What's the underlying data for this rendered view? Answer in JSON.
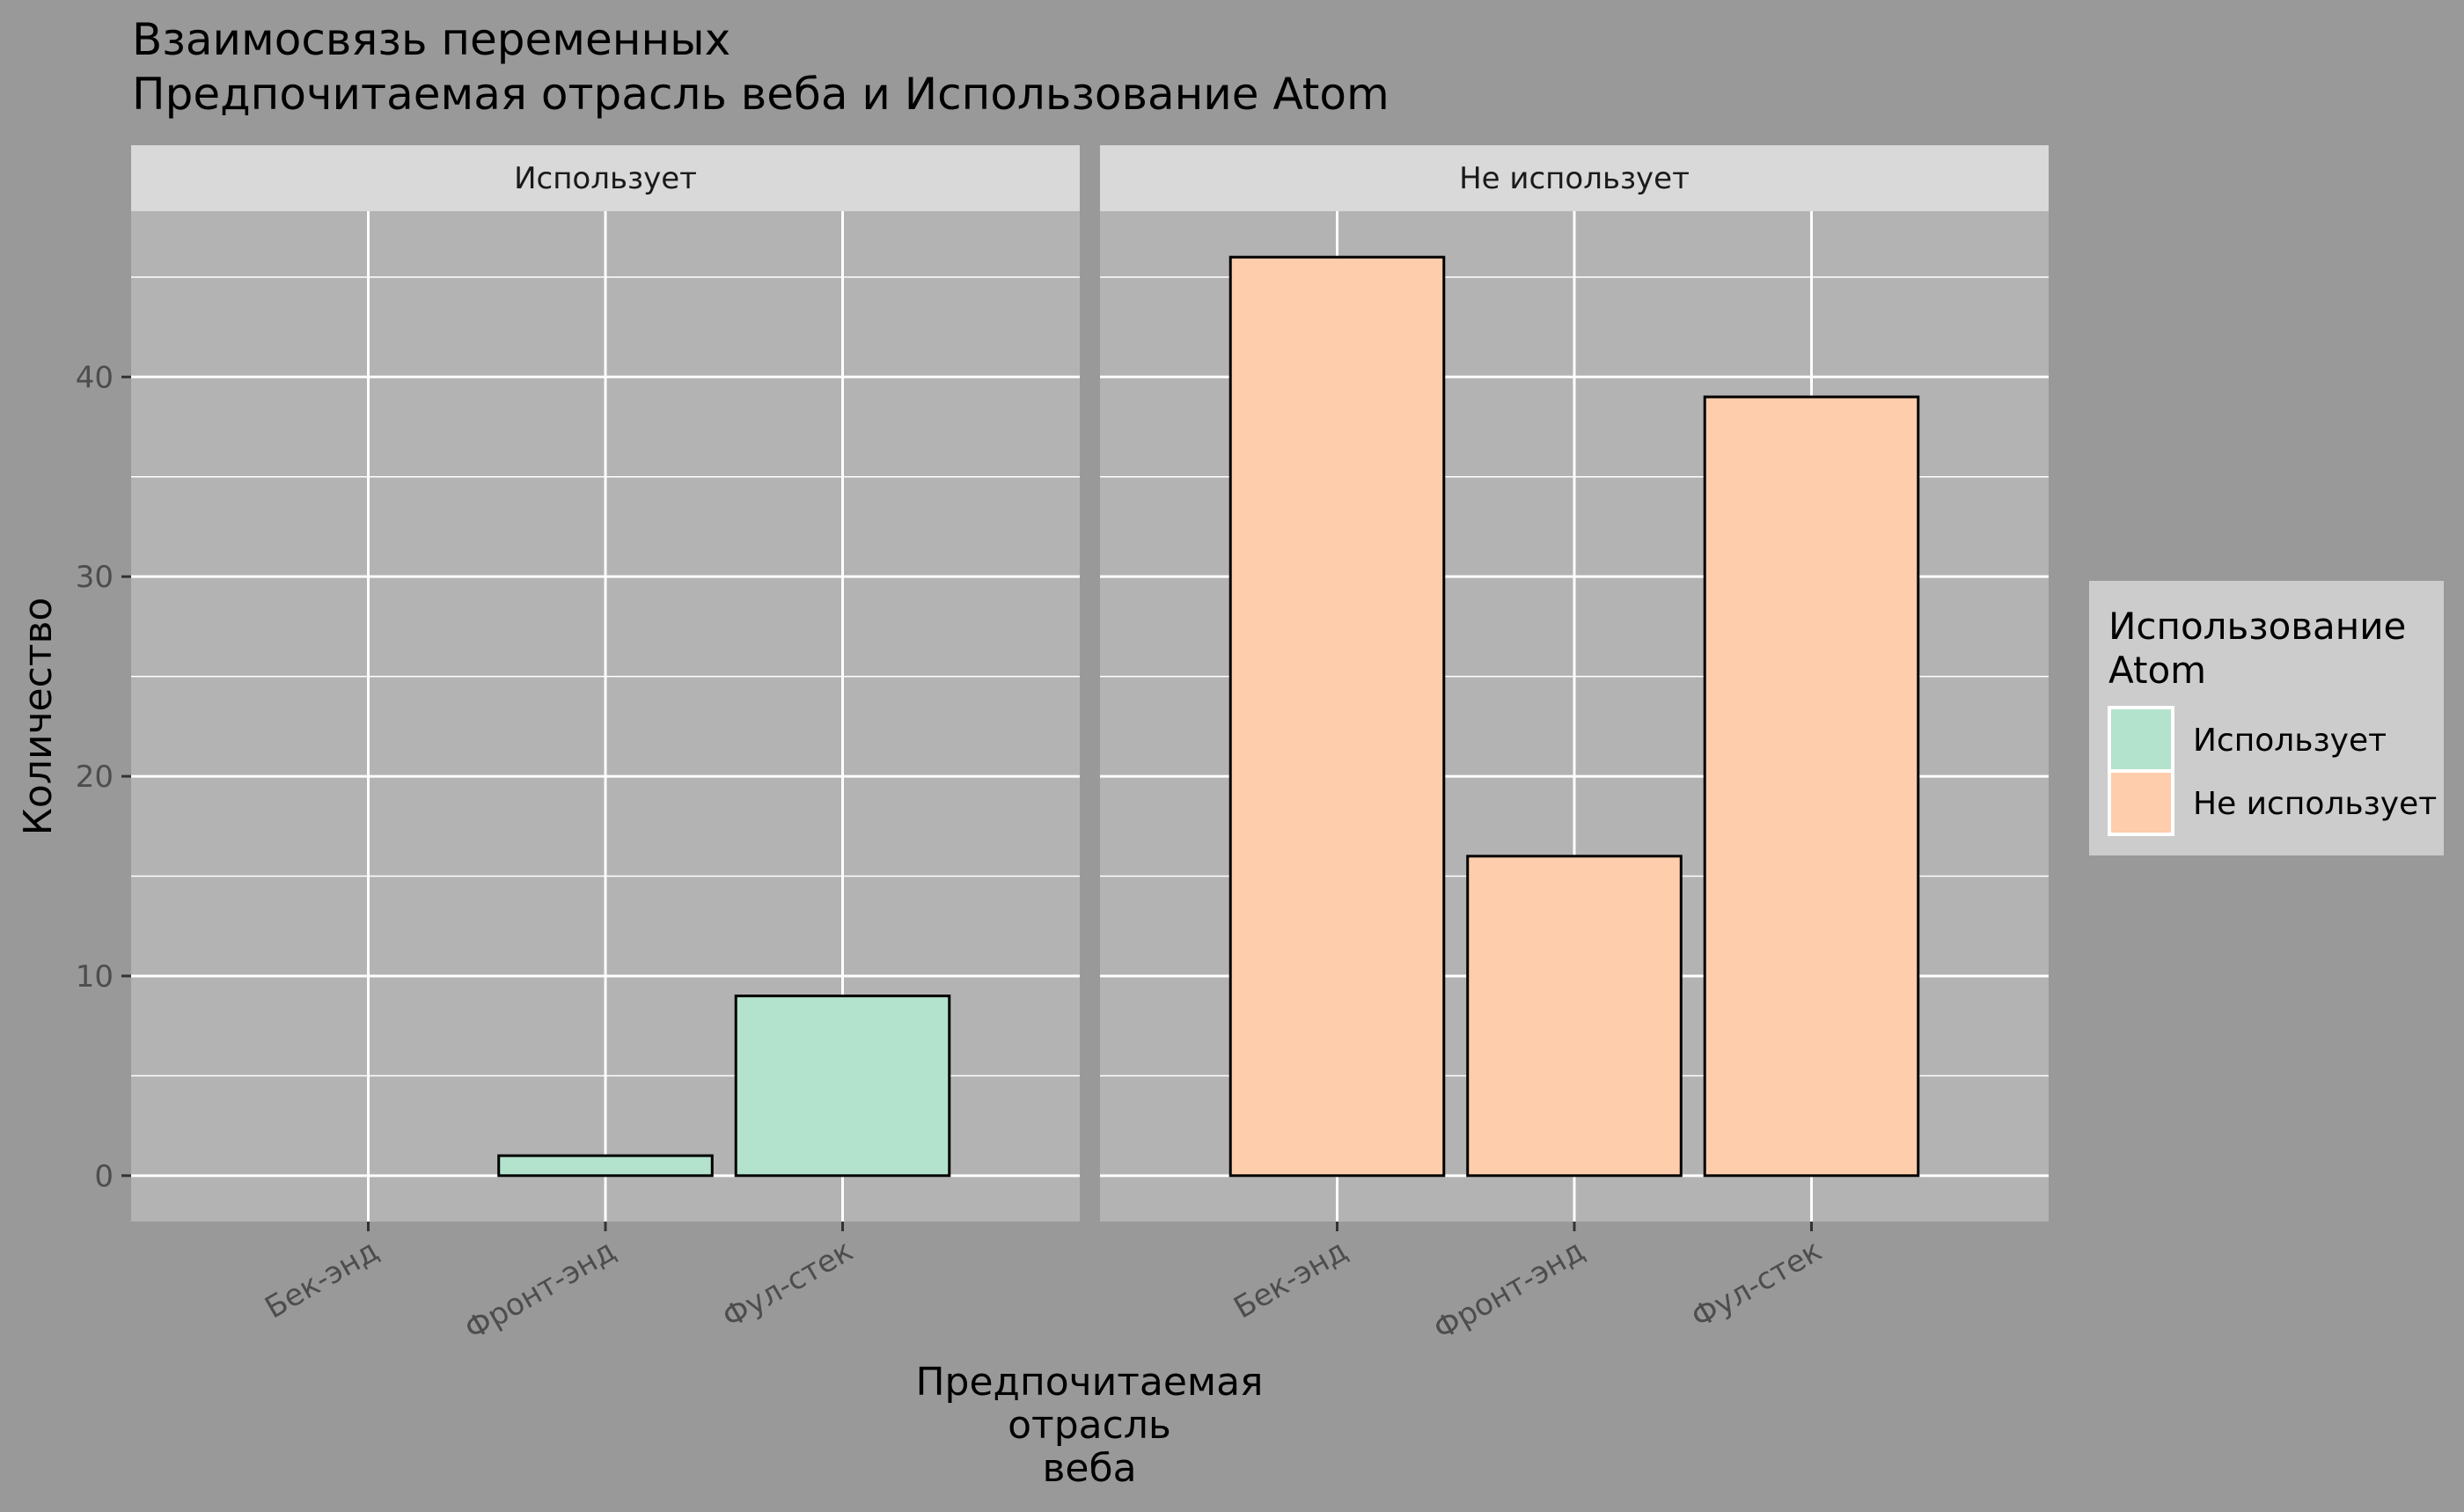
{
  "chart_data": {
    "type": "bar",
    "title": "Взаимосвязь переменных\n Предпочитаемая отрасль веба и Использование Atom",
    "xlabel": "Предпочитаемая\nотрасль\nвеба",
    "ylabel": "Количество",
    "categories": [
      "Бек-энд",
      "Фронт-энд",
      "Фул-стек"
    ],
    "facets": [
      "Использует",
      "Не использует"
    ],
    "yticks": [
      0,
      10,
      20,
      30,
      40
    ],
    "ylim": [
      -2.3,
      48.3
    ],
    "grid": true,
    "legend": {
      "title": "Использование\nAtom",
      "position": "right",
      "entries": [
        "Использует",
        "Не использует"
      ]
    },
    "series": [
      {
        "name": "Использует",
        "facet": "Использует",
        "values": [
          0,
          1,
          9
        ]
      },
      {
        "name": "Не использует",
        "facet": "Не использует",
        "values": [
          46,
          16,
          39
        ]
      }
    ]
  },
  "colors": {
    "background": "#999999",
    "panel": "#b3b3b3",
    "strip": "#d9d9d9",
    "legend_bg": "#cccccc",
    "grid": "#ffffff",
    "outline": "#000000",
    "tick_text": "#4d4d4d",
    "series": [
      "#b3e2cd",
      "#fdcdac"
    ]
  }
}
